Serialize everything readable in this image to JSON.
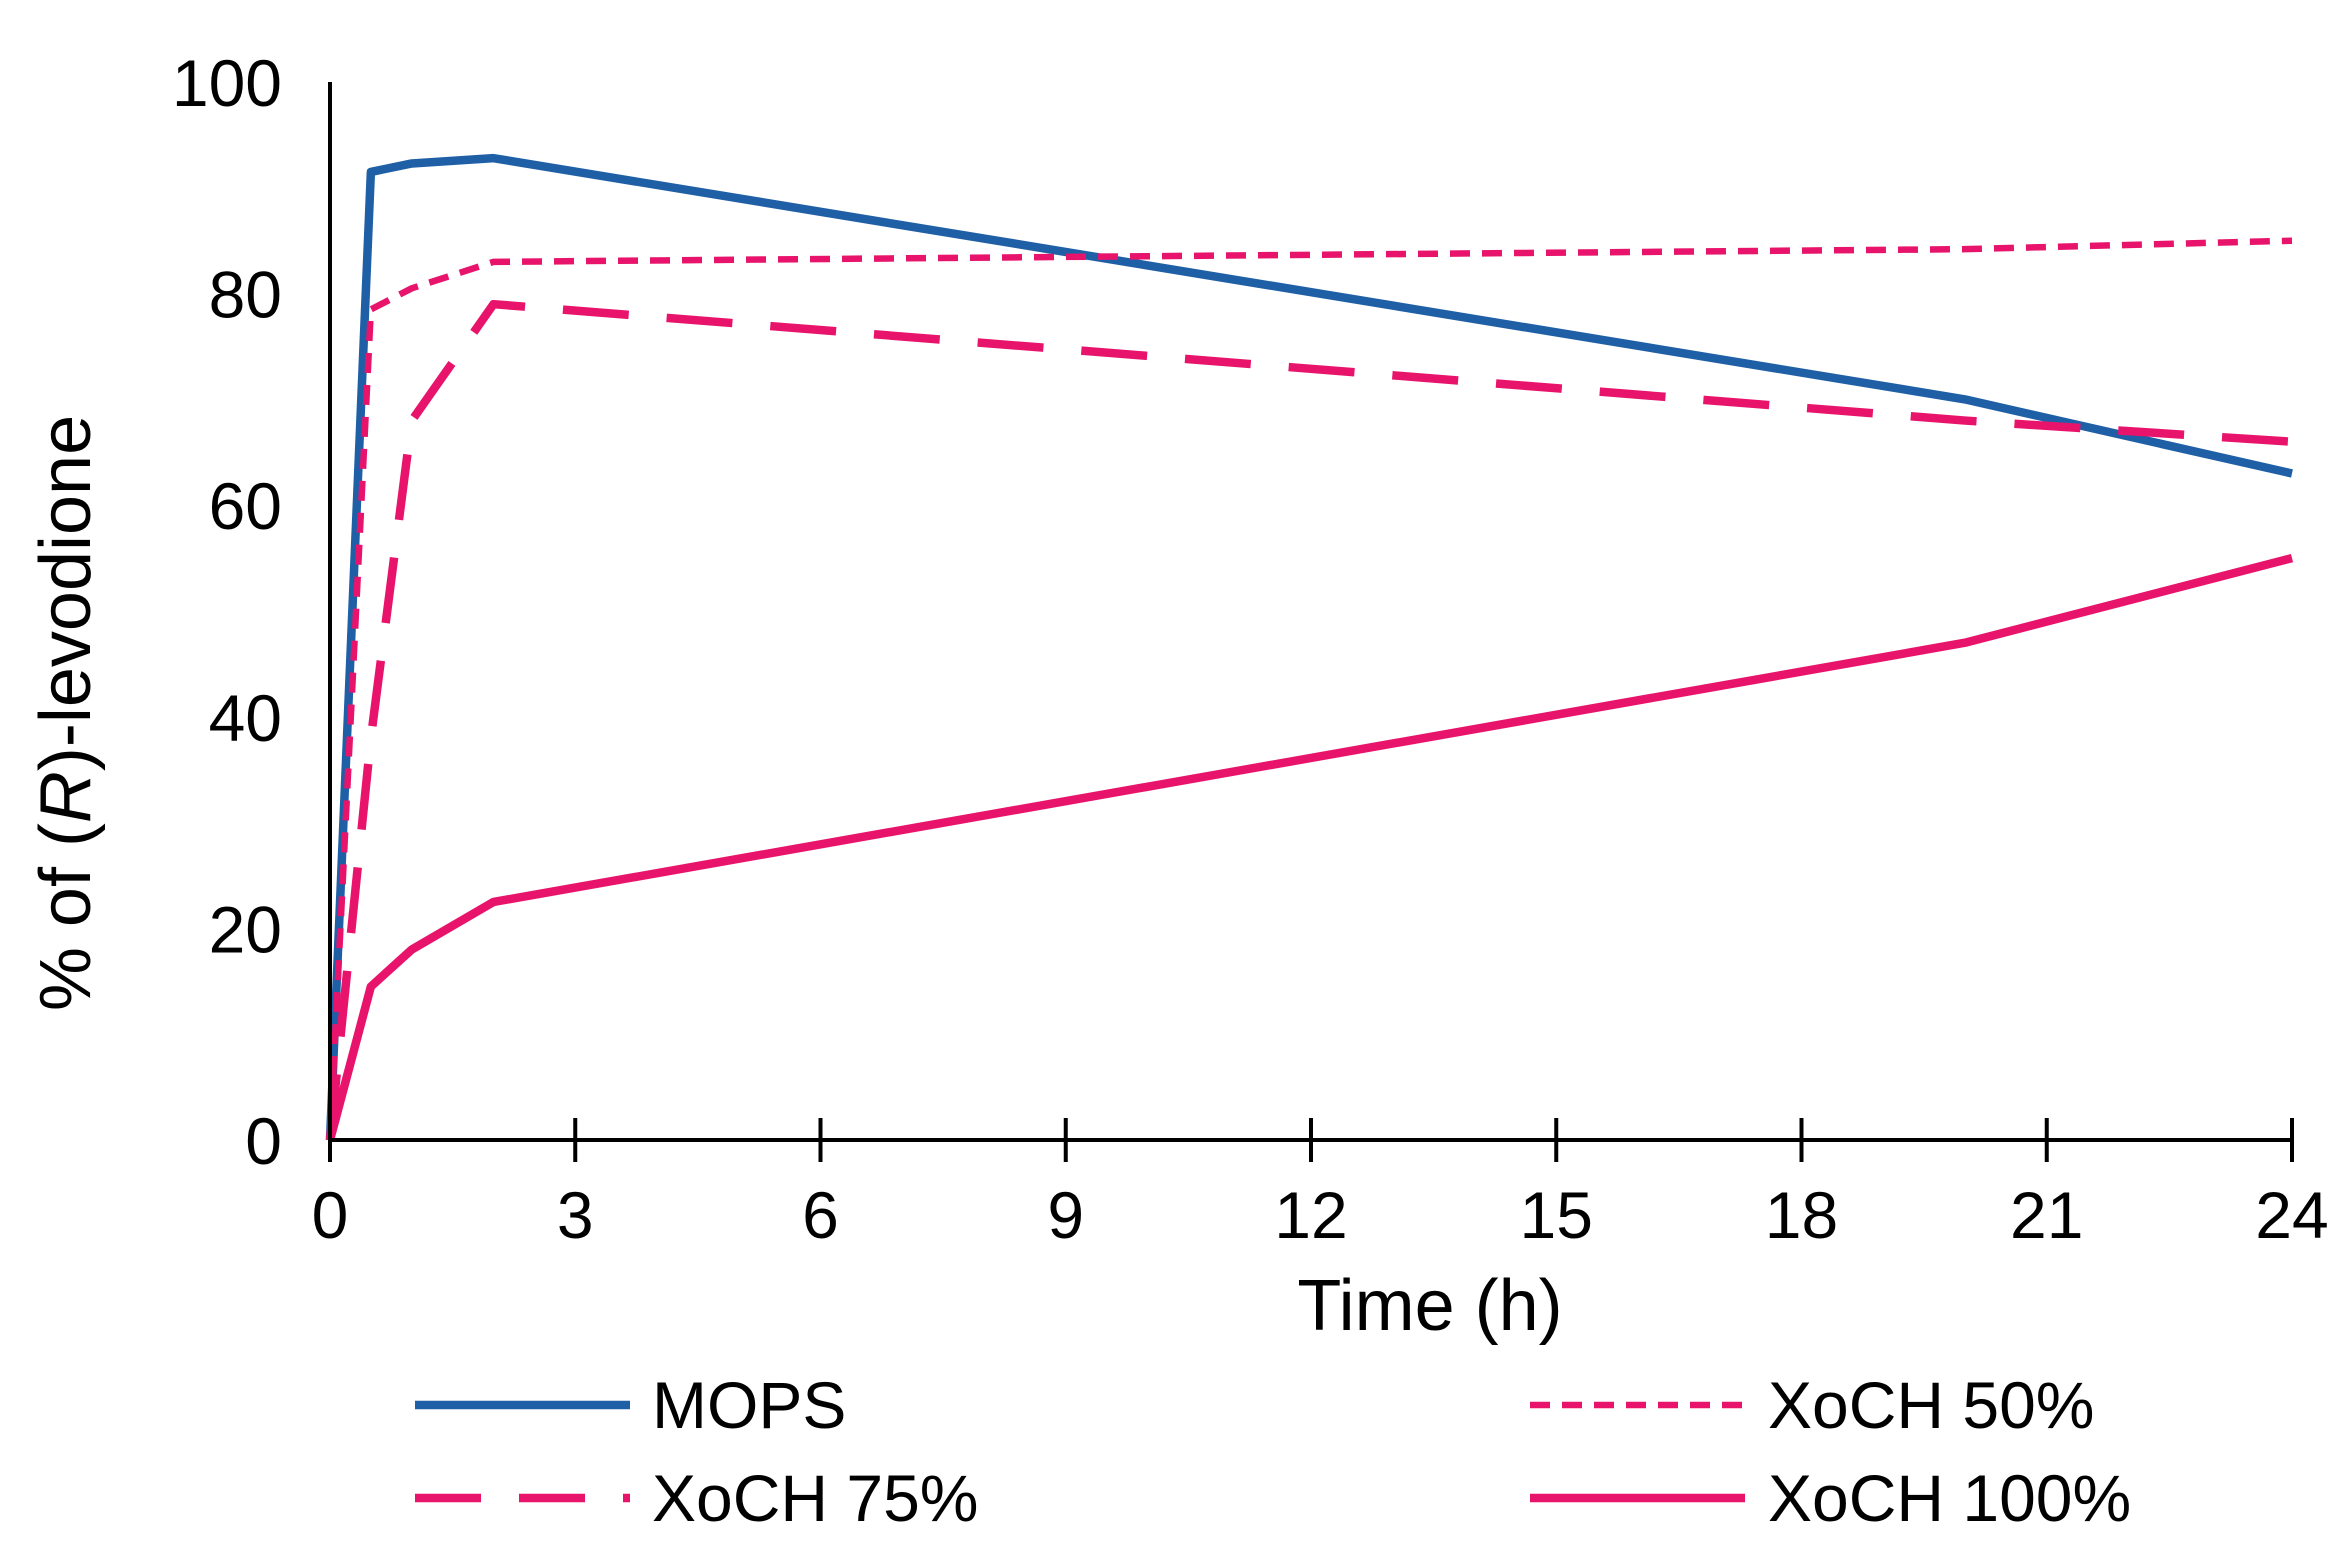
{
  "chart_data": {
    "type": "line",
    "title": "",
    "xlabel": "Time (h)",
    "ylabel_parts": [
      "% of (",
      "R",
      ")-levodione"
    ],
    "xlim": [
      0,
      24
    ],
    "ylim": [
      0,
      100
    ],
    "x_ticks": [
      0,
      3,
      6,
      9,
      12,
      15,
      18,
      21,
      24
    ],
    "y_ticks": [
      0,
      20,
      40,
      60,
      80,
      100
    ],
    "x_tick_labels": [
      "0",
      "3",
      "6",
      "9",
      "12",
      "15",
      "18",
      "21",
      "24"
    ],
    "y_tick_labels": [
      "0",
      "20",
      "40",
      "60",
      "80",
      "100"
    ],
    "grid": false,
    "legend_position": "bottom",
    "series": [
      {
        "name": "MOPS",
        "color": "#1F5FA6",
        "style": "solid",
        "x": [
          0,
          0.5,
          1,
          2,
          20,
          24
        ],
        "y": [
          0,
          91.5,
          92.3,
          92.8,
          70,
          63
        ]
      },
      {
        "name": "XoCH 50%",
        "color": "#E8146C",
        "style": "dotted",
        "x": [
          0,
          0.5,
          1,
          2,
          20,
          24
        ],
        "y": [
          0,
          78.5,
          80.5,
          83,
          84.2,
          85
        ]
      },
      {
        "name": "XoCH 75%",
        "color": "#E8146C",
        "style": "dashed",
        "x": [
          0,
          0.5,
          1,
          2,
          20,
          24
        ],
        "y": [
          0,
          38,
          68,
          79,
          68,
          66
        ]
      },
      {
        "name": "XoCH 100%",
        "color": "#E8146C",
        "style": "solid",
        "x": [
          0,
          0.5,
          1,
          2,
          20,
          24
        ],
        "y": [
          0,
          14.5,
          18,
          22.5,
          47,
          55
        ]
      }
    ]
  }
}
